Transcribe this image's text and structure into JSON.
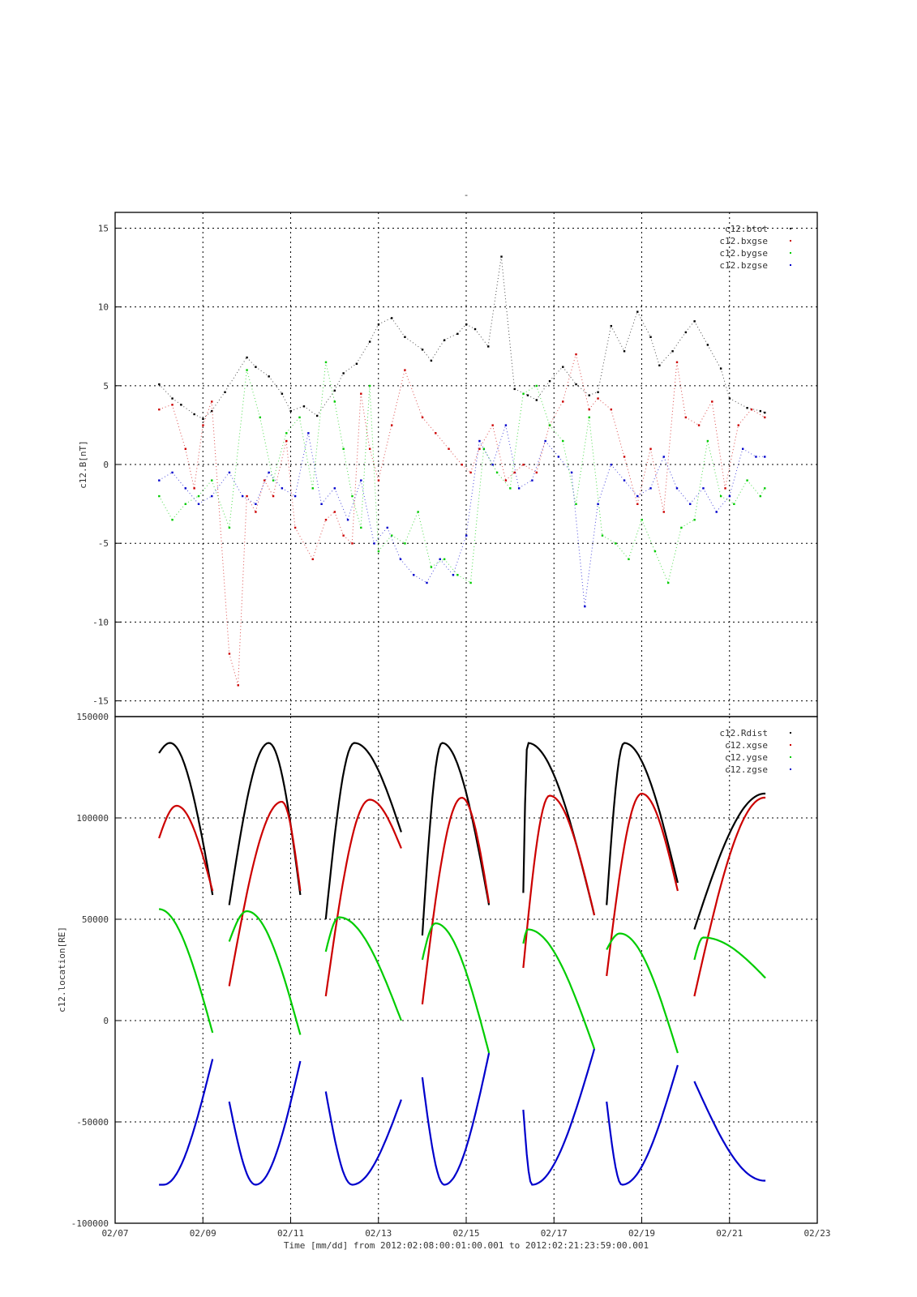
{
  "page": {
    "title_mark": "-"
  },
  "colors": {
    "btot": "#000000",
    "bxgse": "#cc0000",
    "bygse": "#00cc00",
    "bzgse": "#0000cc"
  },
  "chart_data": [
    {
      "type": "scatter",
      "title": "-",
      "ylabel": "c12.B[nT]",
      "xlabel": "Time [mm/dd]  from 2012:02:08:00:01:00.001  to  2012:02:21:23:59:00.001",
      "ylim": [
        -16,
        16
      ],
      "yticks": [
        15,
        10,
        5,
        0,
        -5,
        -10,
        -15
      ],
      "xlim_days": [
        0,
        16
      ],
      "grid": true,
      "legend_position": "top-right",
      "x_unit": "days since 02/07",
      "series": [
        {
          "name": "c12.btot",
          "color": "#000000",
          "x": [
            1.0,
            1.3,
            1.5,
            1.8,
            2.0,
            2.2,
            2.5,
            3.0,
            3.2,
            3.5,
            3.8,
            4.0,
            4.3,
            4.6,
            5.0,
            5.2,
            5.5,
            5.8,
            6.0,
            6.3,
            6.6,
            7.0,
            7.2,
            7.5,
            7.8,
            8.0,
            8.2,
            8.5,
            8.8,
            9.1,
            9.4,
            9.6,
            9.9,
            10.2,
            10.5,
            10.8,
            11.0,
            11.3,
            11.6,
            11.9,
            12.2,
            12.4,
            12.7,
            13.0,
            13.2,
            13.5,
            13.8,
            14.0,
            14.4,
            14.7,
            14.8
          ],
          "y": [
            5.1,
            4.2,
            3.8,
            3.2,
            2.9,
            3.4,
            4.6,
            6.8,
            6.2,
            5.6,
            4.5,
            3.4,
            3.7,
            3.1,
            4.7,
            5.8,
            6.4,
            7.8,
            8.9,
            9.3,
            8.1,
            7.3,
            6.6,
            7.9,
            8.3,
            8.9,
            8.6,
            7.5,
            13.2,
            4.8,
            4.4,
            4.1,
            5.3,
            6.2,
            5.1,
            4.4,
            4.6,
            8.8,
            7.2,
            9.7,
            8.1,
            6.3,
            7.2,
            8.4,
            9.1,
            7.6,
            6.1,
            4.2,
            3.6,
            3.4,
            3.3
          ]
        },
        {
          "name": "c12.bxgse",
          "color": "#cc0000",
          "x": [
            1.0,
            1.3,
            1.6,
            1.8,
            2.0,
            2.2,
            2.6,
            2.8,
            3.0,
            3.2,
            3.4,
            3.6,
            3.9,
            4.1,
            4.5,
            4.8,
            5.0,
            5.2,
            5.4,
            5.6,
            5.8,
            6.0,
            6.3,
            6.6,
            7.0,
            7.3,
            7.6,
            7.9,
            8.1,
            8.3,
            8.6,
            8.9,
            9.1,
            9.3,
            9.6,
            9.9,
            10.2,
            10.5,
            10.8,
            11.0,
            11.3,
            11.6,
            11.9,
            12.2,
            12.5,
            12.8,
            13.0,
            13.3,
            13.6,
            13.9,
            14.2,
            14.5,
            14.8
          ],
          "y": [
            3.5,
            3.8,
            1.0,
            -1.5,
            2.5,
            4.0,
            -12.0,
            -14.0,
            -2.0,
            -3.0,
            -1.0,
            -2.0,
            1.5,
            -4.0,
            -6.0,
            -3.5,
            -3.0,
            -4.5,
            -5.0,
            4.5,
            1.0,
            -1.0,
            2.5,
            6.0,
            3.0,
            2.0,
            1.0,
            0.0,
            -0.5,
            1.0,
            2.5,
            -1.0,
            -0.5,
            0.0,
            -0.5,
            2.5,
            4.0,
            7.0,
            3.5,
            4.2,
            3.5,
            0.5,
            -2.5,
            1.0,
            -3.0,
            6.5,
            3.0,
            2.5,
            4.0,
            -1.5,
            2.5,
            3.5,
            3.0
          ]
        },
        {
          "name": "c12.bygse",
          "color": "#00cc00",
          "x": [
            1.0,
            1.3,
            1.6,
            1.9,
            2.2,
            2.6,
            3.0,
            3.3,
            3.6,
            3.9,
            4.2,
            4.5,
            4.8,
            5.0,
            5.2,
            5.4,
            5.6,
            5.8,
            6.0,
            6.3,
            6.6,
            6.9,
            7.2,
            7.5,
            7.8,
            8.1,
            8.4,
            8.7,
            9.0,
            9.3,
            9.6,
            9.9,
            10.2,
            10.5,
            10.8,
            11.1,
            11.4,
            11.7,
            12.0,
            12.3,
            12.6,
            12.9,
            13.2,
            13.5,
            13.8,
            14.1,
            14.4,
            14.7,
            14.8
          ],
          "y": [
            -2.0,
            -3.5,
            -2.5,
            -2.0,
            -1.0,
            -4.0,
            6.0,
            3.0,
            -1.0,
            2.0,
            3.0,
            -1.5,
            6.5,
            4.0,
            1.0,
            -2.0,
            -4.0,
            5.0,
            -5.5,
            -4.5,
            -5.0,
            -3.0,
            -6.5,
            -6.0,
            -7.0,
            -7.5,
            1.0,
            -0.5,
            -1.5,
            4.5,
            5.0,
            2.5,
            1.5,
            -2.5,
            3.0,
            -4.5,
            -5.0,
            -6.0,
            -3.5,
            -5.5,
            -7.5,
            -4.0,
            -3.5,
            1.5,
            -2.0,
            -2.5,
            -1.0,
            -2.0,
            -1.5
          ]
        },
        {
          "name": "c12.bzgse",
          "color": "#0000cc",
          "x": [
            1.0,
            1.3,
            1.6,
            1.9,
            2.2,
            2.6,
            2.9,
            3.2,
            3.5,
            3.8,
            4.1,
            4.4,
            4.7,
            5.0,
            5.3,
            5.6,
            5.9,
            6.2,
            6.5,
            6.8,
            7.1,
            7.4,
            7.7,
            8.0,
            8.3,
            8.6,
            8.9,
            9.2,
            9.5,
            9.8,
            10.1,
            10.4,
            10.7,
            11.0,
            11.3,
            11.6,
            11.9,
            12.2,
            12.5,
            12.8,
            13.1,
            13.4,
            13.7,
            14.0,
            14.3,
            14.6,
            14.8
          ],
          "y": [
            -1.0,
            -0.5,
            -1.5,
            -2.5,
            -2.0,
            -0.5,
            -2.0,
            -2.5,
            -0.5,
            -1.5,
            -2.0,
            2.0,
            -2.5,
            -1.5,
            -3.5,
            -1.0,
            -5.0,
            -4.0,
            -6.0,
            -7.0,
            -7.5,
            -6.0,
            -7.0,
            -4.5,
            1.5,
            0.0,
            2.5,
            -1.5,
            -1.0,
            1.5,
            0.5,
            -0.5,
            -9.0,
            -2.5,
            0.0,
            -1.0,
            -2.0,
            -1.5,
            0.5,
            -1.5,
            -2.5,
            -1.5,
            -3.0,
            -2.0,
            1.0,
            0.5,
            0.5
          ]
        }
      ]
    },
    {
      "type": "line",
      "ylabel": "c12.location[RE]",
      "xlabel": "Time [mm/dd]  from 2012:02:08:00:01:00.001  to  2012:02:21:23:59:00.001",
      "ylim": [
        -100000,
        150000
      ],
      "yticks": [
        150000,
        100000,
        50000,
        0,
        -50000,
        -100000
      ],
      "xlim_days": [
        0,
        16
      ],
      "xtick_labels": [
        "02/07",
        "02/09",
        "02/11",
        "02/13",
        "02/15",
        "02/17",
        "02/19",
        "02/21",
        "02/23"
      ],
      "grid": true,
      "legend_position": "top-right",
      "x_unit": "days since 02/07",
      "orbit_segments": [
        [
          1.0,
          2.22
        ],
        [
          2.6,
          4.22
        ],
        [
          4.8,
          6.52
        ],
        [
          7.0,
          8.52
        ],
        [
          9.3,
          10.92
        ],
        [
          11.2,
          12.82
        ],
        [
          13.2,
          14.82
        ]
      ],
      "series": [
        {
          "name": "c12.Rdist",
          "color": "#000000",
          "peaks": [
            [
              1.25,
              137000
            ],
            [
              3.5,
              137000
            ],
            [
              5.45,
              137000
            ],
            [
              7.45,
              137000
            ],
            [
              9.4,
              137000
            ],
            [
              11.6,
              137000
            ],
            [
              14.8,
              112000
            ]
          ],
          "segment_ends": [
            [
              132000,
              62000
            ],
            [
              57000,
              62000
            ],
            [
              50000,
              93000
            ],
            [
              42000,
              57000
            ],
            [
              63000,
              52000
            ],
            [
              57000,
              68000
            ],
            [
              45000,
              112000
            ]
          ]
        },
        {
          "name": "c12.xgse",
          "color": "#cc0000",
          "peaks": [
            [
              1.4,
              106000
            ],
            [
              3.8,
              108000
            ],
            [
              5.8,
              109000
            ],
            [
              7.9,
              110000
            ],
            [
              9.9,
              111000
            ],
            [
              12.0,
              112000
            ],
            [
              14.8,
              110000
            ]
          ],
          "segment_ends": [
            [
              90000,
              64000
            ],
            [
              17000,
              64000
            ],
            [
              12000,
              85000
            ],
            [
              8000,
              58000
            ],
            [
              26000,
              52000
            ],
            [
              22000,
              64000
            ],
            [
              12000,
              110000
            ]
          ]
        },
        {
          "name": "c12.ygse",
          "color": "#00cc00",
          "peaks": [
            [
              1.0,
              55000
            ],
            [
              3.0,
              54000
            ],
            [
              5.1,
              51000
            ],
            [
              7.3,
              48000
            ],
            [
              9.4,
              45000
            ],
            [
              11.5,
              43000
            ],
            [
              13.4,
              41000
            ]
          ],
          "segment_ends": [
            [
              55000,
              -6000
            ],
            [
              39000,
              -7000
            ],
            [
              34000,
              0
            ],
            [
              30000,
              -16000
            ],
            [
              38000,
              -14000
            ],
            [
              35000,
              -16000
            ],
            [
              30000,
              21000
            ]
          ]
        },
        {
          "name": "c12.zgse",
          "color": "#0000cc",
          "peaks": [
            [
              1.1,
              -81000
            ],
            [
              3.2,
              -81000
            ],
            [
              5.4,
              -81000
            ],
            [
              7.5,
              -81000
            ],
            [
              9.5,
              -81000
            ],
            [
              11.55,
              -81000
            ],
            [
              14.8,
              -79000
            ]
          ],
          "segment_ends": [
            [
              -81000,
              -19000
            ],
            [
              -40000,
              -20000
            ],
            [
              -35000,
              -39000
            ],
            [
              -28000,
              -16000
            ],
            [
              -44000,
              -14000
            ],
            [
              -40000,
              -22000
            ],
            [
              -30000,
              -79000
            ]
          ]
        }
      ]
    }
  ]
}
